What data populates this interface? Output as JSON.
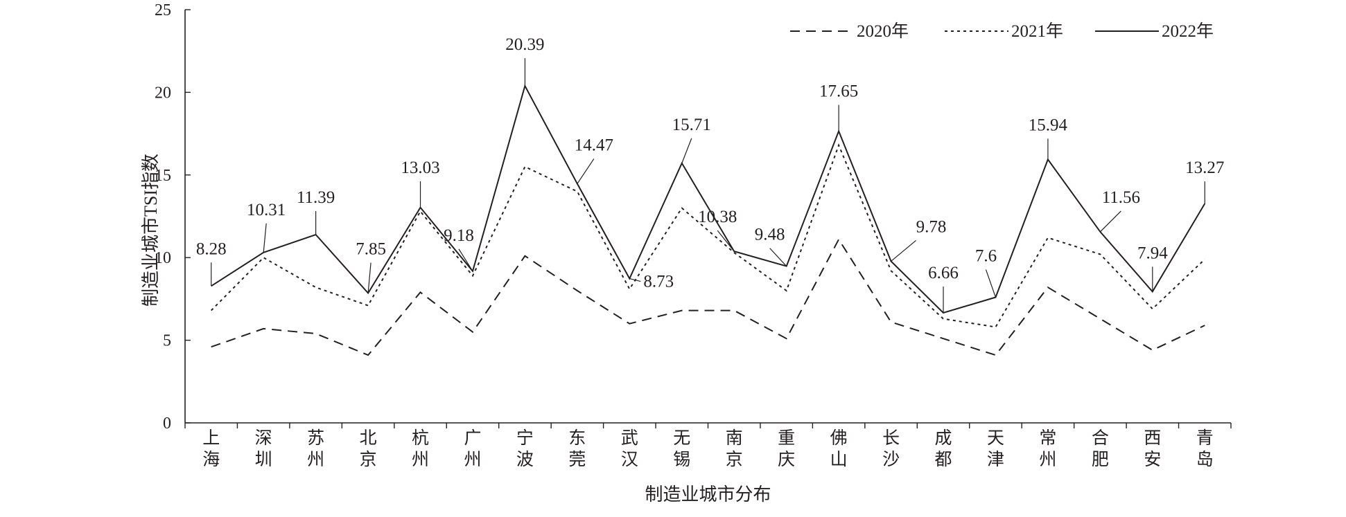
{
  "chart_data": {
    "type": "line",
    "title": "",
    "xlabel": "制造业城市分布",
    "ylabel": "制造业城市TSI指数",
    "ylim": [
      0,
      25
    ],
    "yticks": [
      0,
      5,
      10,
      15,
      20,
      25
    ],
    "grid": false,
    "legend_position": "top-right",
    "categories": [
      "上海",
      "深圳",
      "苏州",
      "北京",
      "杭州",
      "广州",
      "宁波",
      "东莞",
      "武汉",
      "无锡",
      "南京",
      "重庆",
      "佛山",
      "长沙",
      "成都",
      "天津",
      "常州",
      "合肥",
      "西安",
      "青岛"
    ],
    "series": [
      {
        "name": "2020年",
        "style": "dashed",
        "color": "#231f20",
        "values": [
          4.6,
          5.7,
          5.4,
          4.1,
          7.9,
          5.5,
          10.1,
          8.0,
          6.0,
          6.8,
          6.8,
          5.1,
          11.1,
          6.1,
          5.1,
          4.1,
          8.2,
          6.3,
          4.4,
          5.9
        ]
      },
      {
        "name": "2021年",
        "style": "dotted",
        "color": "#231f20",
        "values": [
          6.8,
          10.0,
          8.2,
          7.1,
          12.8,
          8.9,
          15.5,
          14.0,
          8.1,
          13.0,
          10.3,
          8.0,
          16.8,
          9.2,
          6.3,
          5.8,
          11.2,
          10.2,
          6.9,
          9.9
        ]
      },
      {
        "name": "2022年",
        "style": "solid",
        "color": "#231f20",
        "values": [
          8.28,
          10.31,
          11.39,
          7.85,
          13.03,
          9.18,
          20.39,
          14.47,
          8.73,
          15.71,
          10.38,
          9.48,
          17.65,
          9.78,
          6.66,
          7.6,
          15.94,
          11.56,
          7.94,
          13.27
        ],
        "data_labels": [
          "8.28",
          "10.31",
          "11.39",
          "7.85",
          "13.03",
          "9.18",
          "20.39",
          "14.47",
          "8.73",
          "15.71",
          "10.38",
          "9.48",
          "17.65",
          "9.78",
          "6.66",
          "7.6",
          "15.94",
          "11.56",
          "7.94",
          "13.27"
        ]
      }
    ]
  }
}
